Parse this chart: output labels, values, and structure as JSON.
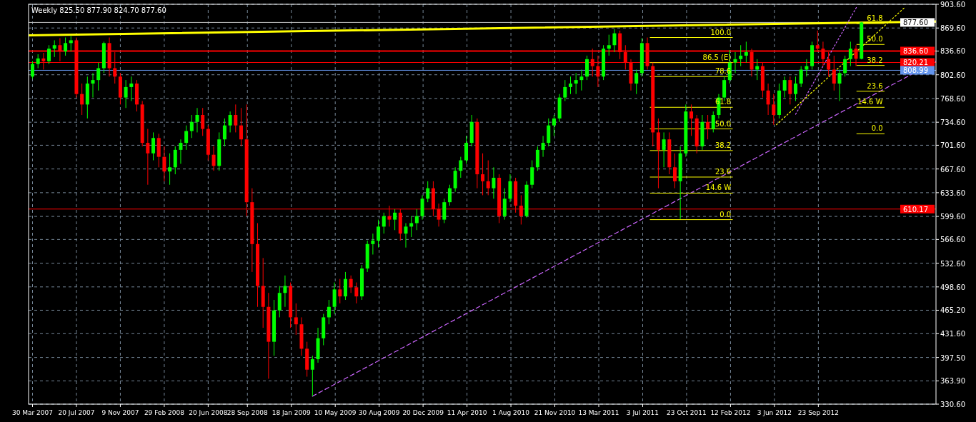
{
  "chart_data": {
    "type": "candlestick",
    "title": "Weekly  825.50 877.90 824.70 877.60",
    "xlim": [
      "2007-03-20",
      "2013-07-20"
    ],
    "ylim": [
      330.6,
      903.6
    ],
    "yticks": [
      {
        "value": 330.6,
        "label": "330.60"
      },
      {
        "value": 363.9,
        "label": "363.90"
      },
      {
        "value": 397.5,
        "label": "397.50"
      },
      {
        "value": 431.6,
        "label": "431.60"
      },
      {
        "value": 465.2,
        "label": "465.20"
      },
      {
        "value": 498.6,
        "label": "498.60"
      },
      {
        "value": 532.6,
        "label": "532.60"
      },
      {
        "value": 566.6,
        "label": "566.60"
      },
      {
        "value": 599.6,
        "label": "599.60"
      },
      {
        "value": 633.6,
        "label": "633.60"
      },
      {
        "value": 667.6,
        "label": "667.60"
      },
      {
        "value": 701.6,
        "label": "701.60"
      },
      {
        "value": 734.6,
        "label": "734.60"
      },
      {
        "value": 768.6,
        "label": "768.60"
      },
      {
        "value": 802.6,
        "label": "802.60"
      },
      {
        "value": 836.6,
        "label": "836.60"
      },
      {
        "value": 869.6,
        "label": "869.60"
      },
      {
        "value": 903.6,
        "label": "903.60"
      }
    ],
    "xticks": [
      {
        "value": "2007-03-30",
        "label": "30 Mar 2007"
      },
      {
        "value": "2007-07-20",
        "label": "20 Jul 2007"
      },
      {
        "value": "2007-11-09",
        "label": "9 Nov 2007"
      },
      {
        "value": "2008-02-29",
        "label": "29 Feb 2008"
      },
      {
        "value": "2008-06-20",
        "label": "20 Jun 2008"
      },
      {
        "value": "2008-09-28",
        "label": "28 Sep 2008"
      },
      {
        "value": "2009-01-18",
        "label": "18 Jan 2009"
      },
      {
        "value": "2009-05-10",
        "label": "10 May 2009"
      },
      {
        "value": "2009-08-30",
        "label": "30 Aug 2009"
      },
      {
        "value": "2009-12-20",
        "label": "20 Dec 2009"
      },
      {
        "value": "2010-04-11",
        "label": "11 Apr 2010"
      },
      {
        "value": "2010-08-01",
        "label": "1 Aug 2010"
      },
      {
        "value": "2010-11-21",
        "label": "21 Nov 2010"
      },
      {
        "value": "2011-03-13",
        "label": "13 Mar 2011"
      },
      {
        "value": "2011-07-03",
        "label": "3 Jul 2011"
      },
      {
        "value": "2011-10-23",
        "label": "23 Oct 2011"
      },
      {
        "value": "2012-02-12",
        "label": "12 Feb 2012"
      },
      {
        "value": "2012-06-03",
        "label": "3 Jun 2012"
      },
      {
        "value": "2012-09-23",
        "label": "23 Sep 2012"
      }
    ],
    "grid": true,
    "x": [
      "2007-03-30",
      "2007-04-13",
      "2007-04-27",
      "2007-05-11",
      "2007-05-25",
      "2007-06-08",
      "2007-06-22",
      "2007-07-06",
      "2007-07-20",
      "2007-08-03",
      "2007-08-17",
      "2007-08-31",
      "2007-09-14",
      "2007-09-28",
      "2007-10-12",
      "2007-10-26",
      "2007-11-09",
      "2007-11-23",
      "2007-12-07",
      "2007-12-21",
      "2008-01-04",
      "2008-01-18",
      "2008-02-01",
      "2008-02-15",
      "2008-02-29",
      "2008-03-14",
      "2008-03-28",
      "2008-04-11",
      "2008-04-25",
      "2008-05-09",
      "2008-05-23",
      "2008-06-06",
      "2008-06-20",
      "2008-07-04",
      "2008-07-18",
      "2008-08-01",
      "2008-08-15",
      "2008-08-29",
      "2008-09-12",
      "2008-09-26",
      "2008-10-10",
      "2008-10-24",
      "2008-11-07",
      "2008-11-21",
      "2008-12-05",
      "2008-12-19",
      "2009-01-02",
      "2009-01-16",
      "2009-01-30",
      "2009-02-13",
      "2009-02-27",
      "2009-03-13",
      "2009-03-27",
      "2009-04-10",
      "2009-04-24",
      "2009-05-08",
      "2009-05-22",
      "2009-06-05",
      "2009-06-19",
      "2009-07-03",
      "2009-07-17",
      "2009-07-31",
      "2009-08-14",
      "2009-08-28",
      "2009-09-11",
      "2009-09-25",
      "2009-10-09",
      "2009-10-23",
      "2009-11-06",
      "2009-11-20",
      "2009-12-04",
      "2009-12-18",
      "2010-01-01",
      "2010-01-15",
      "2010-01-29",
      "2010-02-12",
      "2010-02-26",
      "2010-03-12",
      "2010-03-26",
      "2010-04-09",
      "2010-04-23",
      "2010-05-07",
      "2010-05-21",
      "2010-06-04",
      "2010-06-18",
      "2010-07-02",
      "2010-07-16",
      "2010-07-30",
      "2010-08-13",
      "2010-08-27",
      "2010-09-10",
      "2010-09-24",
      "2010-10-08",
      "2010-10-22",
      "2010-11-05",
      "2010-11-19",
      "2010-12-03",
      "2010-12-17",
      "2010-12-31",
      "2011-01-14",
      "2011-01-28",
      "2011-02-11",
      "2011-02-25",
      "2011-03-11",
      "2011-03-25",
      "2011-04-08",
      "2011-04-22",
      "2011-05-06",
      "2011-05-20",
      "2011-06-03",
      "2011-06-17",
      "2011-07-01",
      "2011-07-15",
      "2011-07-29",
      "2011-08-12",
      "2011-08-26",
      "2011-09-09",
      "2011-09-23",
      "2011-10-07",
      "2011-10-21",
      "2011-11-04",
      "2011-11-18",
      "2011-12-02",
      "2011-12-16",
      "2011-12-30",
      "2012-01-13",
      "2012-01-27",
      "2012-02-10",
      "2012-02-24",
      "2012-03-09",
      "2012-03-23",
      "2012-04-06",
      "2012-04-20",
      "2012-05-04",
      "2012-05-18",
      "2012-06-01",
      "2012-06-15",
      "2012-06-29",
      "2012-07-13",
      "2012-07-27",
      "2012-08-10",
      "2012-08-24",
      "2012-09-07",
      "2012-09-21",
      "2012-10-05",
      "2012-10-19",
      "2012-11-02",
      "2012-11-16",
      "2012-11-30",
      "2012-12-14",
      "2012-12-28",
      "2013-01-11"
    ],
    "ohlc": [
      [
        800,
        822,
        797,
        818
      ],
      [
        818,
        832,
        812,
        826
      ],
      [
        826,
        834,
        810,
        822
      ],
      [
        822,
        845,
        818,
        840
      ],
      [
        840,
        852,
        828,
        845
      ],
      [
        845,
        855,
        822,
        836
      ],
      [
        836,
        856,
        830,
        848
      ],
      [
        848,
        858,
        836,
        852
      ],
      [
        852,
        856,
        770,
        775
      ],
      [
        775,
        790,
        745,
        760
      ],
      [
        760,
        800,
        740,
        790
      ],
      [
        790,
        805,
        770,
        795
      ],
      [
        795,
        820,
        780,
        812
      ],
      [
        812,
        850,
        805,
        848
      ],
      [
        848,
        856,
        800,
        812
      ],
      [
        812,
        835,
        790,
        800
      ],
      [
        800,
        805,
        760,
        770
      ],
      [
        770,
        795,
        755,
        785
      ],
      [
        785,
        800,
        765,
        790
      ],
      [
        790,
        795,
        750,
        760
      ],
      [
        760,
        765,
        700,
        705
      ],
      [
        705,
        725,
        645,
        690
      ],
      [
        690,
        720,
        680,
        712
      ],
      [
        712,
        718,
        670,
        685
      ],
      [
        685,
        700,
        650,
        664
      ],
      [
        664,
        690,
        645,
        670
      ],
      [
        670,
        700,
        660,
        695
      ],
      [
        695,
        710,
        675,
        705
      ],
      [
        705,
        730,
        695,
        722
      ],
      [
        722,
        745,
        712,
        735
      ],
      [
        735,
        755,
        720,
        745
      ],
      [
        745,
        755,
        715,
        725
      ],
      [
        725,
        730,
        680,
        688
      ],
      [
        688,
        700,
        665,
        672
      ],
      [
        672,
        720,
        665,
        710
      ],
      [
        710,
        740,
        700,
        730
      ],
      [
        730,
        750,
        720,
        745
      ],
      [
        745,
        760,
        720,
        730
      ],
      [
        730,
        755,
        700,
        710
      ],
      [
        710,
        760,
        600,
        620
      ],
      [
        620,
        640,
        520,
        560
      ],
      [
        560,
        590,
        470,
        500
      ],
      [
        500,
        540,
        440,
        470
      ],
      [
        470,
        490,
        367,
        420
      ],
      [
        420,
        480,
        400,
        465
      ],
      [
        465,
        500,
        455,
        490
      ],
      [
        490,
        515,
        470,
        500
      ],
      [
        500,
        505,
        440,
        455
      ],
      [
        455,
        475,
        430,
        445
      ],
      [
        445,
        455,
        400,
        410
      ],
      [
        410,
        420,
        370,
        380
      ],
      [
        380,
        400,
        342,
        395
      ],
      [
        395,
        440,
        390,
        425
      ],
      [
        425,
        460,
        415,
        455
      ],
      [
        455,
        480,
        445,
        470
      ],
      [
        470,
        505,
        460,
        495
      ],
      [
        495,
        510,
        475,
        485
      ],
      [
        485,
        520,
        480,
        510
      ],
      [
        510,
        515,
        490,
        498
      ],
      [
        498,
        505,
        475,
        485
      ],
      [
        485,
        530,
        480,
        525
      ],
      [
        525,
        565,
        520,
        560
      ],
      [
        560,
        575,
        545,
        565
      ],
      [
        565,
        595,
        555,
        585
      ],
      [
        585,
        605,
        575,
        600
      ],
      [
        600,
        615,
        585,
        595
      ],
      [
        595,
        610,
        580,
        605
      ],
      [
        605,
        610,
        565,
        575
      ],
      [
        575,
        590,
        555,
        585
      ],
      [
        585,
        600,
        570,
        590
      ],
      [
        590,
        610,
        580,
        600
      ],
      [
        600,
        630,
        595,
        625
      ],
      [
        625,
        650,
        620,
        640
      ],
      [
        640,
        650,
        600,
        610
      ],
      [
        610,
        618,
        585,
        595
      ],
      [
        595,
        625,
        590,
        620
      ],
      [
        620,
        645,
        615,
        640
      ],
      [
        640,
        670,
        635,
        665
      ],
      [
        665,
        685,
        655,
        680
      ],
      [
        680,
        715,
        675,
        705
      ],
      [
        705,
        745,
        700,
        735
      ],
      [
        735,
        740,
        640,
        660
      ],
      [
        660,
        690,
        630,
        650
      ],
      [
        650,
        680,
        630,
        640
      ],
      [
        640,
        670,
        625,
        655
      ],
      [
        655,
        660,
        590,
        600
      ],
      [
        600,
        640,
        595,
        625
      ],
      [
        625,
        660,
        620,
        650
      ],
      [
        650,
        655,
        605,
        615
      ],
      [
        615,
        630,
        588,
        600
      ],
      [
        600,
        650,
        598,
        645
      ],
      [
        645,
        680,
        640,
        670
      ],
      [
        670,
        700,
        665,
        695
      ],
      [
        695,
        715,
        685,
        705
      ],
      [
        705,
        740,
        700,
        730
      ],
      [
        730,
        745,
        715,
        740
      ],
      [
        740,
        775,
        735,
        770
      ],
      [
        770,
        795,
        765,
        785
      ],
      [
        785,
        800,
        775,
        790
      ],
      [
        790,
        805,
        775,
        795
      ],
      [
        795,
        810,
        780,
        800
      ],
      [
        800,
        830,
        795,
        825
      ],
      [
        825,
        840,
        800,
        815
      ],
      [
        815,
        830,
        785,
        800
      ],
      [
        800,
        845,
        795,
        840
      ],
      [
        840,
        860,
        830,
        845
      ],
      [
        845,
        868,
        835,
        862
      ],
      [
        862,
        866,
        825,
        835
      ],
      [
        835,
        845,
        810,
        820
      ],
      [
        820,
        825,
        780,
        790
      ],
      [
        790,
        810,
        775,
        805
      ],
      [
        805,
        855,
        800,
        848
      ],
      [
        848,
        856,
        810,
        815
      ],
      [
        815,
        820,
        700,
        720
      ],
      [
        720,
        740,
        640,
        695
      ],
      [
        695,
        720,
        670,
        710
      ],
      [
        710,
        720,
        660,
        670
      ],
      [
        670,
        690,
        640,
        650
      ],
      [
        650,
        700,
        596,
        690
      ],
      [
        690,
        760,
        685,
        750
      ],
      [
        750,
        760,
        715,
        740
      ],
      [
        740,
        745,
        690,
        700
      ],
      [
        700,
        745,
        695,
        735
      ],
      [
        735,
        745,
        710,
        725
      ],
      [
        725,
        750,
        720,
        745
      ],
      [
        745,
        775,
        740,
        770
      ],
      [
        770,
        800,
        765,
        795
      ],
      [
        795,
        838,
        790,
        820
      ],
      [
        820,
        835,
        805,
        825
      ],
      [
        825,
        845,
        815,
        830
      ],
      [
        830,
        850,
        820,
        835
      ],
      [
        835,
        840,
        800,
        810
      ],
      [
        810,
        825,
        795,
        815
      ],
      [
        815,
        820,
        770,
        780
      ],
      [
        780,
        790,
        745,
        760
      ],
      [
        760,
        775,
        731,
        745
      ],
      [
        745,
        790,
        740,
        780
      ],
      [
        780,
        800,
        770,
        795
      ],
      [
        795,
        800,
        760,
        775
      ],
      [
        775,
        800,
        765,
        790
      ],
      [
        790,
        815,
        785,
        810
      ],
      [
        810,
        825,
        800,
        815
      ],
      [
        815,
        850,
        810,
        845
      ],
      [
        845,
        866,
        835,
        840
      ],
      [
        840,
        850,
        815,
        825
      ],
      [
        825,
        835,
        800,
        810
      ],
      [
        810,
        830,
        780,
        790
      ],
      [
        790,
        810,
        765,
        805
      ],
      [
        805,
        830,
        800,
        825
      ],
      [
        825,
        850,
        815,
        840
      ],
      [
        840,
        845,
        815,
        825.5
      ],
      [
        825.5,
        877.9,
        824.7,
        877.6
      ]
    ],
    "ref_lines": [
      {
        "axis": "y",
        "value": 877.6,
        "label": "877.60",
        "color": "#c0c0c0"
      },
      {
        "axis": "y",
        "value": 836.6,
        "label": "836.60",
        "color": "#ff0000"
      },
      {
        "axis": "y",
        "value": 820.21,
        "label": "820.21",
        "color": "#ff0000"
      },
      {
        "axis": "y",
        "value": 808.99,
        "label": "808.99",
        "color": "#6495ed"
      },
      {
        "axis": "y",
        "value": 610.17,
        "label": "610.17",
        "color": "#ff0000"
      }
    ],
    "series": [
      {
        "type": "line",
        "color": "#ffff00",
        "line_style": "solid",
        "x": [
          "2007-03-20",
          "2013-07-20"
        ],
        "values": [
          859,
          879
        ]
      },
      {
        "type": "line",
        "color": "#cc66ff",
        "line_style": "dashed",
        "x": [
          "2009-03-13",
          "2013-07-20"
        ],
        "values": [
          342,
          822
        ]
      },
      {
        "type": "line",
        "color": "#ffff00",
        "line_style": "dotted",
        "x": [
          "2012-06-08",
          "2013-05-03"
        ],
        "values": [
          731,
          900
        ]
      },
      {
        "type": "line",
        "color": "#cc66ff",
        "line_style": "dotted",
        "x": [
          "2012-07-27",
          "2012-12-31"
        ],
        "values": [
          746,
          901
        ]
      },
      {
        "type": "line",
        "name": "100.0",
        "color": "#ffff00",
        "line_style": "solid",
        "x": [
          "2011-07-22",
          "2012-02-17"
        ],
        "values": [
          856,
          856
        ]
      },
      {
        "type": "line",
        "name": "86.5 (E)",
        "color": "#ffff00",
        "line_style": "solid",
        "x": [
          "2011-07-22",
          "2012-02-17"
        ],
        "values": [
          820,
          820
        ]
      },
      {
        "type": "line",
        "name": "78.6",
        "color": "#ffff00",
        "line_style": "solid",
        "x": [
          "2011-07-22",
          "2012-02-17"
        ],
        "values": [
          800,
          800
        ]
      },
      {
        "type": "line",
        "name": "61.8",
        "color": "#ffff00",
        "line_style": "solid",
        "x": [
          "2011-07-22",
          "2012-02-17"
        ],
        "values": [
          756,
          756
        ]
      },
      {
        "type": "line",
        "name": "50.0",
        "color": "#ffff00",
        "line_style": "solid",
        "x": [
          "2011-07-22",
          "2012-02-17"
        ],
        "values": [
          725,
          725
        ]
      },
      {
        "type": "line",
        "name": "38.2",
        "color": "#ffff00",
        "line_style": "solid",
        "x": [
          "2011-07-22",
          "2012-02-17"
        ],
        "values": [
          694,
          694
        ]
      },
      {
        "type": "line",
        "name": "23.6",
        "color": "#ffff00",
        "line_style": "solid",
        "x": [
          "2011-07-22",
          "2012-02-17"
        ],
        "values": [
          656,
          656
        ]
      },
      {
        "type": "line",
        "name": "14.6 W",
        "color": "#ffff00",
        "line_style": "solid",
        "x": [
          "2011-07-22",
          "2012-02-17"
        ],
        "values": [
          633,
          633
        ]
      },
      {
        "type": "line",
        "name": "0.0",
        "color": "#ffff00",
        "line_style": "solid",
        "x": [
          "2011-07-22",
          "2012-02-17"
        ],
        "values": [
          595,
          595
        ]
      },
      {
        "type": "line",
        "name": "61.8",
        "color": "#ffff00",
        "line_style": "solid",
        "x": [
          "2012-12-30",
          "2013-03-10"
        ],
        "values": [
          876,
          876
        ]
      },
      {
        "type": "line",
        "name": "50.0",
        "color": "#ffff00",
        "line_style": "solid",
        "x": [
          "2012-12-30",
          "2013-03-10"
        ],
        "values": [
          846,
          846
        ]
      },
      {
        "type": "line",
        "name": "38.2",
        "color": "#ffff00",
        "line_style": "solid",
        "x": [
          "2012-12-30",
          "2013-03-10"
        ],
        "values": [
          816,
          816
        ]
      },
      {
        "type": "line",
        "name": "23.6",
        "color": "#ffff00",
        "line_style": "solid",
        "x": [
          "2012-12-30",
          "2013-03-10"
        ],
        "values": [
          779,
          779
        ]
      },
      {
        "type": "line",
        "name": "14.6 W",
        "color": "#ffff00",
        "line_style": "solid",
        "x": [
          "2012-12-30",
          "2013-03-10"
        ],
        "values": [
          756,
          756
        ]
      },
      {
        "type": "line",
        "name": "0.0",
        "color": "#ffff00",
        "line_style": "solid",
        "x": [
          "2012-12-30",
          "2013-03-10"
        ],
        "values": [
          718,
          718
        ]
      }
    ]
  }
}
